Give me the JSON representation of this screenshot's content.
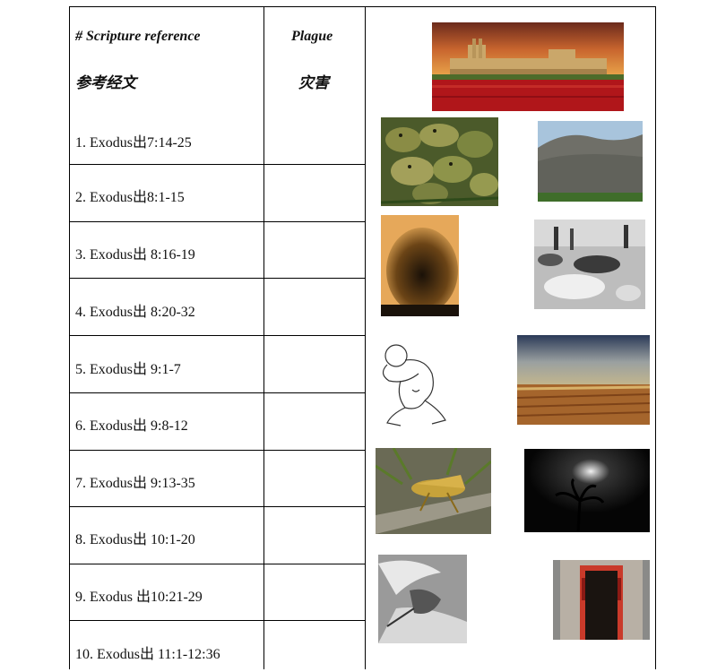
{
  "table": {
    "header": {
      "reference_en": "# Scripture reference",
      "reference_cn": "参考经文",
      "plague_en": "Plague",
      "plague_cn": "灾害"
    },
    "rows": [
      {
        "reference": "1.  Exodus出7:14-25",
        "plague": ""
      },
      {
        "reference": "2.  Exodus出8:1-15",
        "plague": ""
      },
      {
        "reference": "3.  Exodus出  8:16-19",
        "plague": ""
      },
      {
        "reference": "4. Exodus出  8:20-32",
        "plague": ""
      },
      {
        "reference": "5. Exodus出  9:1-7",
        "plague": ""
      },
      {
        "reference": "6. Exodus出  9:8-12",
        "plague": ""
      },
      {
        "reference": "7. Exodus出  9:13-35",
        "plague": ""
      },
      {
        "reference": "8. Exodus出  10:1-20",
        "plague": ""
      },
      {
        "reference": "9. Exodus  出10:21-29",
        "plague": ""
      },
      {
        "reference": "10. Exodus出  11:1-12:36",
        "plague": ""
      }
    ]
  },
  "images": [
    {
      "icon": "egyptian-temple-blood-river-image"
    },
    {
      "icon": "frogs-image"
    },
    {
      "icon": "gnats-swarm-image"
    },
    {
      "icon": "flies-swarm-image"
    },
    {
      "icon": "dead-livestock-image"
    },
    {
      "icon": "man-with-boils-image"
    },
    {
      "icon": "hail-storm-field-image"
    },
    {
      "icon": "locust-image"
    },
    {
      "icon": "darkness-night-image"
    },
    {
      "icon": "angel-of-death-image"
    },
    {
      "icon": "blood-doorway-image"
    }
  ]
}
